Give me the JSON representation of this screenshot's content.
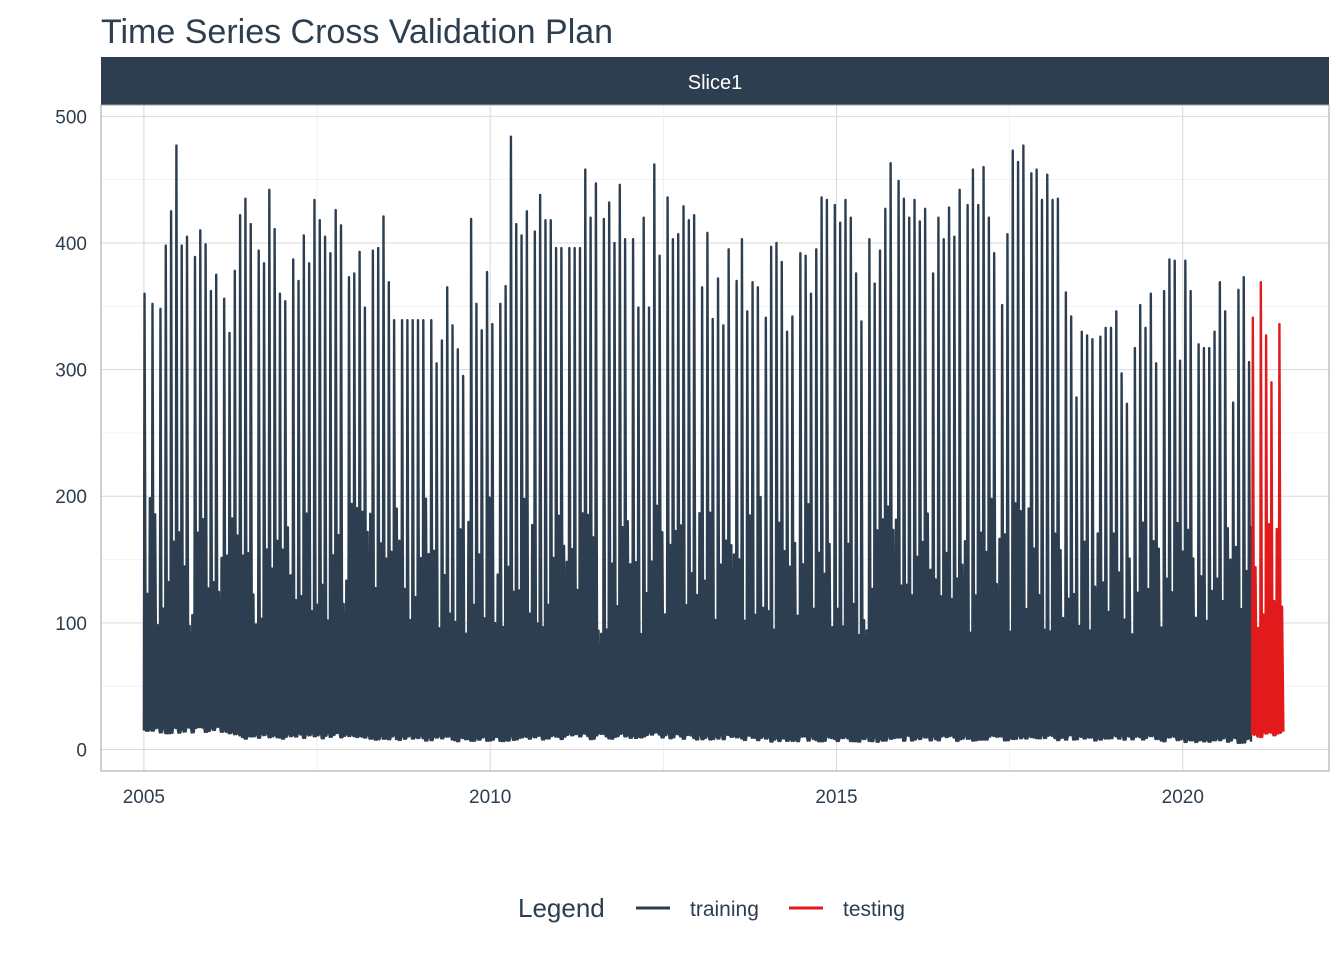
{
  "chart_data": {
    "type": "line",
    "title": "Time Series Cross Validation Plan",
    "facet_label": "Slice1",
    "xlabel": "",
    "ylabel": "",
    "x_ticks": [
      "2005",
      "2010",
      "2015",
      "2020"
    ],
    "y_ticks": [
      "0",
      "100",
      "200",
      "300",
      "400",
      "500"
    ],
    "xlim": [
      "2004-05-20",
      "2022-02-10"
    ],
    "ylim": [
      -17,
      509
    ],
    "grid": true,
    "legend": {
      "title": "Legend",
      "position": "bottom",
      "entries": [
        {
          "label": "training",
          "color": "#2c3e50"
        },
        {
          "label": "testing",
          "color": "#e31a1c"
        }
      ]
    },
    "colors": {
      "training": "#2c3e50",
      "testing": "#e31a1c",
      "strip": "#2c3e50",
      "text": "#2c3e50"
    },
    "frequency": "weekly",
    "train_start": "2005-01-01",
    "train_end": "2020-12-31",
    "test_start": "2021-01-01",
    "test_end": "2021-06-20",
    "peaks": {
      "training": [
        [
          "2005-01-03",
          360
        ],
        [
          "2005-02-15",
          352
        ],
        [
          "2005-03-20",
          348
        ],
        [
          "2005-04-25",
          398
        ],
        [
          "2005-05-27",
          425
        ],
        [
          "2005-06-20",
          477
        ],
        [
          "2005-07-20",
          398
        ],
        [
          "2005-08-20",
          405
        ],
        [
          "2005-09-20",
          389
        ],
        [
          "2005-10-20",
          410
        ],
        [
          "2005-11-20",
          399
        ],
        [
          "2005-12-20",
          362
        ],
        [
          "2006-01-20",
          375
        ],
        [
          "2006-02-20",
          356
        ],
        [
          "2006-03-20",
          329
        ],
        [
          "2006-04-25",
          378
        ],
        [
          "2006-05-20",
          422
        ],
        [
          "2006-06-20",
          435
        ],
        [
          "2006-07-20",
          415
        ],
        [
          "2006-08-20",
          394
        ],
        [
          "2006-09-20",
          384
        ],
        [
          "2006-10-20",
          442
        ],
        [
          "2006-11-20",
          411
        ],
        [
          "2006-12-20",
          360
        ],
        [
          "2007-01-20",
          354
        ],
        [
          "2007-02-20",
          387
        ],
        [
          "2007-03-20",
          370
        ],
        [
          "2007-04-25",
          406
        ],
        [
          "2007-05-20",
          384
        ],
        [
          "2007-06-10",
          434
        ],
        [
          "2007-07-10",
          418
        ],
        [
          "2007-08-10",
          405
        ],
        [
          "2007-09-10",
          392
        ],
        [
          "2007-10-10",
          426
        ],
        [
          "2007-11-10",
          414
        ],
        [
          "2007-12-10",
          373
        ],
        [
          "2008-01-10",
          376
        ],
        [
          "2008-02-10",
          393
        ],
        [
          "2008-03-10",
          349
        ],
        [
          "2008-04-15",
          394
        ],
        [
          "2008-05-15",
          396
        ],
        [
          "2008-06-15",
          421
        ],
        [
          "2008-07-15",
          369
        ],
        [
          "2008-08-15",
          339
        ],
        [
          "2008-09-15",
          339
        ],
        [
          "2008-10-15",
          339
        ],
        [
          "2008-11-15",
          339
        ],
        [
          "2008-12-15",
          339
        ],
        [
          "2009-01-15",
          339
        ],
        [
          "2009-02-15",
          339
        ],
        [
          "2009-03-15",
          305
        ],
        [
          "2009-04-15",
          323
        ],
        [
          "2009-05-15",
          365
        ],
        [
          "2009-06-15",
          335
        ],
        [
          "2009-07-15",
          316
        ],
        [
          "2009-08-15",
          295
        ],
        [
          "2009-09-15",
          419
        ],
        [
          "2009-10-15",
          352
        ],
        [
          "2009-11-15",
          331
        ],
        [
          "2009-12-15",
          377
        ],
        [
          "2010-01-15",
          336
        ],
        [
          "2010-02-15",
          352
        ],
        [
          "2010-03-15",
          366
        ],
        [
          "2010-04-15",
          484
        ],
        [
          "2010-05-15",
          415
        ],
        [
          "2010-06-15",
          406
        ],
        [
          "2010-07-15",
          425
        ],
        [
          "2010-08-15",
          409
        ],
        [
          "2010-09-15",
          438
        ],
        [
          "2010-10-15",
          418
        ],
        [
          "2010-11-15",
          418
        ],
        [
          "2010-12-15",
          396
        ],
        [
          "2011-01-15",
          396
        ],
        [
          "2011-02-15",
          396
        ],
        [
          "2011-03-15",
          396
        ],
        [
          "2011-04-15",
          396
        ],
        [
          "2011-05-15",
          458
        ],
        [
          "2011-06-15",
          420
        ],
        [
          "2011-07-15",
          447
        ],
        [
          "2011-08-15",
          419
        ],
        [
          "2011-09-15",
          432
        ],
        [
          "2011-10-15",
          400
        ],
        [
          "2011-11-15",
          446
        ],
        [
          "2011-12-15",
          403
        ],
        [
          "2012-01-15",
          403
        ],
        [
          "2012-02-15",
          349
        ],
        [
          "2012-03-15",
          420
        ],
        [
          "2012-04-15",
          349
        ],
        [
          "2012-05-15",
          462
        ],
        [
          "2012-06-15",
          390
        ],
        [
          "2012-07-15",
          436
        ],
        [
          "2012-08-15",
          403
        ],
        [
          "2012-09-15",
          407
        ],
        [
          "2012-10-15",
          429
        ],
        [
          "2012-11-15",
          418
        ],
        [
          "2012-12-15",
          422
        ],
        [
          "2013-01-15",
          365
        ],
        [
          "2013-02-15",
          408
        ],
        [
          "2013-03-15",
          340
        ],
        [
          "2013-04-15",
          372
        ],
        [
          "2013-05-15",
          335
        ],
        [
          "2013-06-15",
          395
        ],
        [
          "2013-07-15",
          370
        ],
        [
          "2013-08-15",
          403
        ],
        [
          "2013-09-15",
          346
        ],
        [
          "2013-10-15",
          369
        ],
        [
          "2013-11-15",
          365
        ],
        [
          "2013-12-15",
          341
        ],
        [
          "2014-01-15",
          397
        ],
        [
          "2014-02-15",
          400
        ],
        [
          "2014-03-15",
          385
        ],
        [
          "2014-04-15",
          330
        ],
        [
          "2014-05-15",
          342
        ],
        [
          "2014-06-15",
          392
        ],
        [
          "2014-07-15",
          390
        ],
        [
          "2014-08-15",
          360
        ],
        [
          "2014-09-15",
          395
        ],
        [
          "2014-10-15",
          436
        ],
        [
          "2014-11-15",
          434
        ],
        [
          "2014-12-15",
          430
        ],
        [
          "2015-01-15",
          416
        ],
        [
          "2015-02-15",
          434
        ],
        [
          "2015-03-15",
          420
        ],
        [
          "2015-04-15",
          376
        ],
        [
          "2015-05-15",
          338
        ],
        [
          "2015-06-15",
          403
        ],
        [
          "2015-07-15",
          368
        ],
        [
          "2015-08-15",
          394
        ],
        [
          "2015-09-15",
          427
        ],
        [
          "2015-10-15",
          463
        ],
        [
          "2015-11-15",
          449
        ],
        [
          "2015-12-15",
          435
        ],
        [
          "2016-01-15",
          420
        ],
        [
          "2016-02-15",
          434
        ],
        [
          "2016-03-15",
          417
        ],
        [
          "2016-04-15",
          427
        ],
        [
          "2016-05-15",
          376
        ],
        [
          "2016-06-15",
          420
        ],
        [
          "2016-07-15",
          403
        ],
        [
          "2016-08-15",
          428
        ],
        [
          "2016-09-15",
          405
        ],
        [
          "2016-10-15",
          442
        ],
        [
          "2016-11-15",
          430
        ],
        [
          "2016-12-15",
          458
        ],
        [
          "2017-01-15",
          430
        ],
        [
          "2017-02-15",
          460
        ],
        [
          "2017-03-15",
          420
        ],
        [
          "2017-04-15",
          392
        ],
        [
          "2017-05-15",
          351
        ],
        [
          "2017-06-15",
          407
        ],
        [
          "2017-07-15",
          473
        ],
        [
          "2017-08-15",
          464
        ],
        [
          "2017-09-15",
          477
        ],
        [
          "2017-10-15",
          455
        ],
        [
          "2017-11-15",
          458
        ],
        [
          "2017-12-15",
          434
        ],
        [
          "2018-01-15",
          454
        ],
        [
          "2018-02-15",
          434
        ],
        [
          "2018-03-15",
          435
        ],
        [
          "2018-04-15",
          361
        ],
        [
          "2018-05-15",
          342
        ],
        [
          "2018-06-15",
          278
        ],
        [
          "2018-07-15",
          330
        ],
        [
          "2018-08-15",
          327
        ],
        [
          "2018-09-15",
          324
        ],
        [
          "2018-10-15",
          326
        ],
        [
          "2018-11-15",
          333
        ],
        [
          "2018-12-15",
          333
        ],
        [
          "2019-01-15",
          346
        ],
        [
          "2019-02-15",
          297
        ],
        [
          "2019-03-15",
          273
        ],
        [
          "2019-04-15",
          317
        ],
        [
          "2019-05-15",
          351
        ],
        [
          "2019-06-15",
          333
        ],
        [
          "2019-07-15",
          360
        ],
        [
          "2019-08-15",
          305
        ],
        [
          "2019-09-15",
          362
        ],
        [
          "2019-10-15",
          387
        ],
        [
          "2019-11-15",
          386
        ],
        [
          "2019-12-15",
          307
        ],
        [
          "2020-01-15",
          386
        ],
        [
          "2020-02-15",
          362
        ],
        [
          "2020-03-15",
          320
        ],
        [
          "2020-04-15",
          317
        ],
        [
          "2020-05-15",
          317
        ],
        [
          "2020-06-15",
          330
        ],
        [
          "2020-07-15",
          369
        ],
        [
          "2020-08-15",
          346
        ],
        [
          "2020-09-15",
          274
        ],
        [
          "2020-10-15",
          363
        ],
        [
          "2020-11-15",
          373
        ],
        [
          "2020-12-15",
          306
        ]
      ],
      "testing": [
        [
          "2021-01-08",
          341
        ],
        [
          "2021-02-12",
          369
        ],
        [
          "2021-03-15",
          327
        ],
        [
          "2021-04-15",
          290
        ],
        [
          "2021-05-15",
          336
        ],
        [
          "2021-06-12",
          300
        ]
      ]
    },
    "troughs": {
      "training": [
        [
          "2005-01-03",
          12
        ],
        [
          "2006-01-15",
          14
        ],
        [
          "2006-06-20",
          8
        ],
        [
          "2007-06-10",
          9
        ],
        [
          "2008-08-10",
          7
        ],
        [
          "2009-09-20",
          6
        ],
        [
          "2010-06-20",
          7
        ],
        [
          "2012-06-20",
          9
        ],
        [
          "2013-09-15",
          6
        ],
        [
          "2014-09-15",
          6
        ],
        [
          "2015-10-15",
          6
        ],
        [
          "2017-01-15",
          7
        ],
        [
          "2019-01-20",
          7
        ],
        [
          "2019-12-20",
          6
        ],
        [
          "2020-09-15",
          5
        ]
      ],
      "testing": [
        [
          "2021-01-20",
          9
        ],
        [
          "2021-03-01",
          10
        ],
        [
          "2021-06-20",
          12
        ]
      ]
    }
  }
}
